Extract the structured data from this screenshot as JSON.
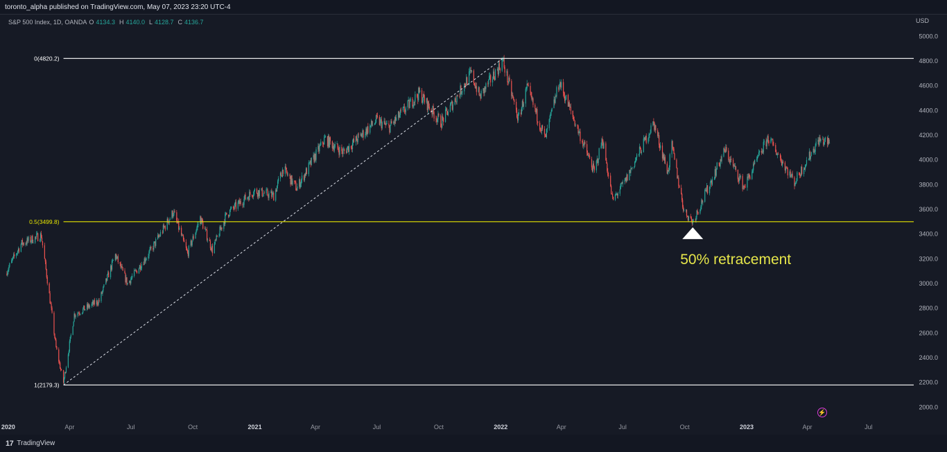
{
  "header": {
    "publisher_line": "toronto_alpha published on TradingView.com, May 07, 2023 23:20 UTC-4"
  },
  "legend": {
    "symbol": "S&P 500 Index, 1D, OANDA",
    "open_label": "O",
    "open": "4134.3",
    "high_label": "H",
    "high": "4140.0",
    "low_label": "L",
    "low": "4128.7",
    "close_label": "C",
    "close": "4136.7"
  },
  "currency": "USD",
  "footer": {
    "brand": "TradingView"
  },
  "colors": {
    "up": "#26a69a",
    "down": "#ef5350",
    "fib_mid": "#e6e600",
    "fib_lines": "#ffffff",
    "annotation": "#e6e64a"
  },
  "chart_data": {
    "type": "candlestick",
    "title": "",
    "xlabel": "",
    "ylabel": "",
    "ylim": [
      1940,
      5080
    ],
    "y_ticks": [
      "5000.0",
      "4800.0",
      "4600.0",
      "4400.0",
      "4200.0",
      "4000.0",
      "3800.0",
      "3600.0",
      "3400.0",
      "3200.0",
      "3000.0",
      "2800.0",
      "2600.0",
      "2400.0",
      "2200.0",
      "2000.0"
    ],
    "x_ticks": [
      "2020",
      "Apr",
      "Jul",
      "Oct",
      "2021",
      "Apr",
      "Jul",
      "Oct",
      "2022",
      "Apr",
      "Jul",
      "Oct",
      "2023",
      "Apr",
      "Jul"
    ],
    "x_tick_dates": [
      "2020-01-01",
      "2020-04-01",
      "2020-07-01",
      "2020-10-01",
      "2021-01-01",
      "2021-04-01",
      "2021-07-01",
      "2021-10-01",
      "2022-01-01",
      "2022-04-01",
      "2022-07-01",
      "2022-10-01",
      "2023-01-01",
      "2023-04-01",
      "2023-07-01"
    ],
    "fib_levels": [
      {
        "label": "0(4820.2)",
        "value": 4820.2
      },
      {
        "label": "0.5(3499.8)",
        "value": 3499.8
      },
      {
        "label": "1(2179.3)",
        "value": 2179.3
      }
    ],
    "trendline": {
      "from": {
        "date": "2020-03-23",
        "value": 2179.3
      },
      "to": {
        "date": "2022-01-04",
        "value": 4820.2
      }
    },
    "annotation": {
      "text": "50% retracement",
      "date": "2022-10-13",
      "value": 3499.8
    },
    "price_path": [
      {
        "date": "2019-12-28",
        "value": 3080
      },
      {
        "date": "2020-01-20",
        "value": 3320
      },
      {
        "date": "2020-02-19",
        "value": 3390
      },
      {
        "date": "2020-03-01",
        "value": 2950
      },
      {
        "date": "2020-03-12",
        "value": 2480
      },
      {
        "date": "2020-03-23",
        "value": 2200
      },
      {
        "date": "2020-04-08",
        "value": 2750
      },
      {
        "date": "2020-05-15",
        "value": 2860
      },
      {
        "date": "2020-06-08",
        "value": 3230
      },
      {
        "date": "2020-06-26",
        "value": 3000
      },
      {
        "date": "2020-07-31",
        "value": 3270
      },
      {
        "date": "2020-09-02",
        "value": 3580
      },
      {
        "date": "2020-09-23",
        "value": 3240
      },
      {
        "date": "2020-10-12",
        "value": 3530
      },
      {
        "date": "2020-10-30",
        "value": 3270
      },
      {
        "date": "2020-11-20",
        "value": 3560
      },
      {
        "date": "2020-12-31",
        "value": 3750
      },
      {
        "date": "2021-01-29",
        "value": 3710
      },
      {
        "date": "2021-02-12",
        "value": 3930
      },
      {
        "date": "2021-03-04",
        "value": 3770
      },
      {
        "date": "2021-04-15",
        "value": 4170
      },
      {
        "date": "2021-05-12",
        "value": 4060
      },
      {
        "date": "2021-07-01",
        "value": 4320
      },
      {
        "date": "2021-07-19",
        "value": 4260
      },
      {
        "date": "2021-09-02",
        "value": 4540
      },
      {
        "date": "2021-10-04",
        "value": 4300
      },
      {
        "date": "2021-11-18",
        "value": 4700
      },
      {
        "date": "2021-12-01",
        "value": 4510
      },
      {
        "date": "2022-01-04",
        "value": 4800
      },
      {
        "date": "2022-01-27",
        "value": 4330
      },
      {
        "date": "2022-02-09",
        "value": 4580
      },
      {
        "date": "2022-03-08",
        "value": 4170
      },
      {
        "date": "2022-03-29",
        "value": 4630
      },
      {
        "date": "2022-05-20",
        "value": 3900
      },
      {
        "date": "2022-06-01",
        "value": 4170
      },
      {
        "date": "2022-06-16",
        "value": 3670
      },
      {
        "date": "2022-07-05",
        "value": 3830
      },
      {
        "date": "2022-08-16",
        "value": 4300
      },
      {
        "date": "2022-09-06",
        "value": 3900
      },
      {
        "date": "2022-09-12",
        "value": 4110
      },
      {
        "date": "2022-09-30",
        "value": 3590
      },
      {
        "date": "2022-10-13",
        "value": 3500
      },
      {
        "date": "2022-11-30",
        "value": 4080
      },
      {
        "date": "2022-12-28",
        "value": 3780
      },
      {
        "date": "2023-02-02",
        "value": 4180
      },
      {
        "date": "2023-03-13",
        "value": 3820
      },
      {
        "date": "2023-04-18",
        "value": 4160
      },
      {
        "date": "2023-05-05",
        "value": 4137
      }
    ]
  }
}
